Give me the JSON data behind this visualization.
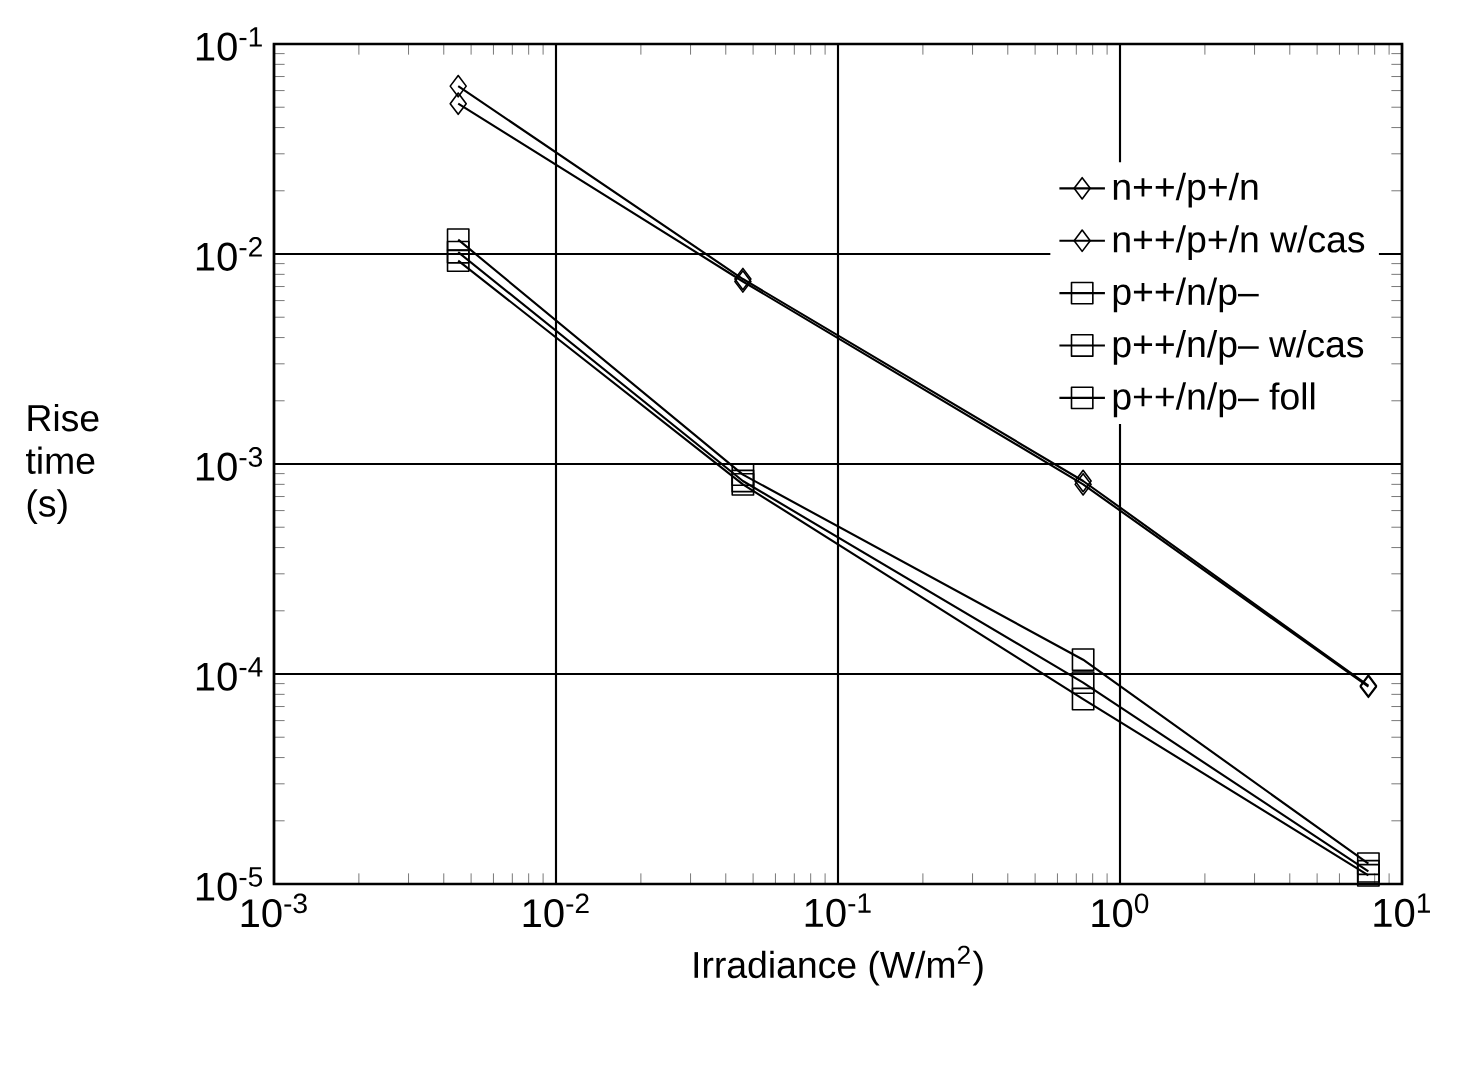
{
  "chart_data": {
    "type": "line",
    "xlabel": "Irradiance (W/m$^{2}$)",
    "ylabel": "Rise time (s)",
    "log": "xy",
    "grid": true,
    "legend": "top right",
    "xlim": [
      0.001,
      10
    ],
    "ylim": [
      1e-05,
      0.1
    ],
    "xticks": [
      {
        "value": 0.001,
        "label": "10$^{-3}$"
      },
      {
        "value": 0.01,
        "label": "10$^{-2}$"
      },
      {
        "value": 0.1,
        "label": "10$^{-1}$"
      },
      {
        "value": 1,
        "label": "10$^{0}$"
      },
      {
        "value": 10,
        "label": "10$^{1}$"
      }
    ],
    "yticks": [
      {
        "value": 1e-05,
        "label": "10$^{-5}$"
      },
      {
        "value": 0.0001,
        "label": "10$^{-4}$"
      },
      {
        "value": 0.001,
        "label": "10$^{-3}$"
      },
      {
        "value": 0.01,
        "label": "10$^{-2}$"
      },
      {
        "value": 0.1,
        "label": "10$^{-1}$"
      }
    ],
    "x": [
      0.0045,
      0.046,
      0.74,
      7.6
    ],
    "series": [
      {
        "name": "n++/p+/n",
        "color": "#000000",
        "marker": "diamond",
        "values": [
          0.063,
          0.0076,
          0.00083,
          8.8e-05
        ]
      },
      {
        "name": "n++/p+/n w/cas",
        "color": "#000000",
        "marker": "diamond",
        "values": [
          0.052,
          0.0074,
          0.0008,
          8.7e-05
        ]
      },
      {
        "name": "p++/n/p–",
        "color": "#000000",
        "marker": "square",
        "values": [
          0.0117,
          0.00089,
          0.000117,
          1.25e-05
        ]
      },
      {
        "name": "p++/n/p– w/cas",
        "color": "#000000",
        "marker": "square",
        "values": [
          0.0102,
          0.00083,
          9.1e-05,
          1.15e-05
        ]
      },
      {
        "name": "p++/n/p– foll",
        "color": "#000000",
        "marker": "square",
        "values": [
          0.0093,
          0.0008,
          7.6e-05,
          1.1e-05
        ]
      }
    ]
  }
}
